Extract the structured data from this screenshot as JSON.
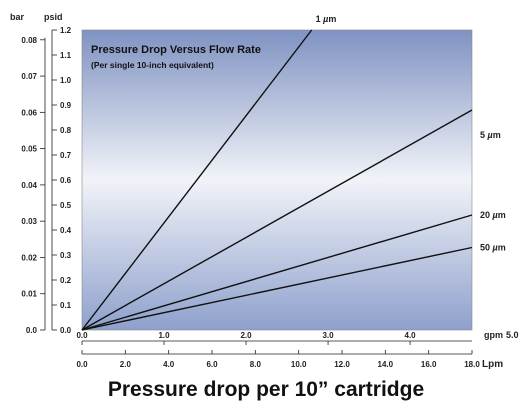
{
  "caption": "Pressure drop per 10” cartridge",
  "chart_data": {
    "type": "line",
    "title": "Pressure Drop Versus Flow Rate",
    "subtitle": "(Per single 10-inch equivalent)",
    "colors": {
      "plot_top": "#7f92c2",
      "plot_mid": "#f1f3f8",
      "plot_bottom": "#8ea0cc",
      "line": "#111111"
    },
    "x_axis": {
      "unit": "Lpm",
      "range": [
        0,
        18
      ],
      "ticks": [
        "0.0",
        "2.0",
        "4.0",
        "6.0",
        "8.0",
        "10.0",
        "12.0",
        "14.0",
        "16.0",
        "18.0"
      ]
    },
    "x2_axis": {
      "unit": "gpm",
      "range": [
        0,
        4.755
      ],
      "ticks": [
        "0.0",
        "1.0",
        "2.0",
        "3.0",
        "4.0"
      ],
      "end_label": "5.0"
    },
    "y_left_axis": {
      "unit": "bar",
      "range": [
        0,
        0.0827
      ],
      "ticks": [
        "0.0",
        "0.01",
        "0.02",
        "0.03",
        "0.04",
        "0.05",
        "0.06",
        "0.07",
        "0.08"
      ]
    },
    "y_right_axis": {
      "unit": "psid",
      "range": [
        0,
        1.2
      ],
      "ticks": [
        "0.0",
        "0.1",
        "0.2",
        "0.3",
        "0.4",
        "0.5",
        "0.6",
        "0.7",
        "0.8",
        "0.9",
        "1.0",
        "1.1",
        "1.2"
      ]
    },
    "series": [
      {
        "name": "1 um",
        "label_text": "1 ",
        "label_unit": "m",
        "x": [
          0,
          10.6
        ],
        "y": [
          0,
          1.2
        ]
      },
      {
        "name": "5 um",
        "label_text": "5 ",
        "label_unit": "m",
        "x": [
          0,
          18
        ],
        "y": [
          0,
          0.88
        ]
      },
      {
        "name": "20 um",
        "label_text": "20 ",
        "label_unit": "m",
        "x": [
          0,
          18
        ],
        "y": [
          0,
          0.46
        ]
      },
      {
        "name": "50 um",
        "label_text": "50 ",
        "label_unit": "m",
        "x": [
          0,
          18
        ],
        "y": [
          0,
          0.33
        ]
      }
    ]
  }
}
